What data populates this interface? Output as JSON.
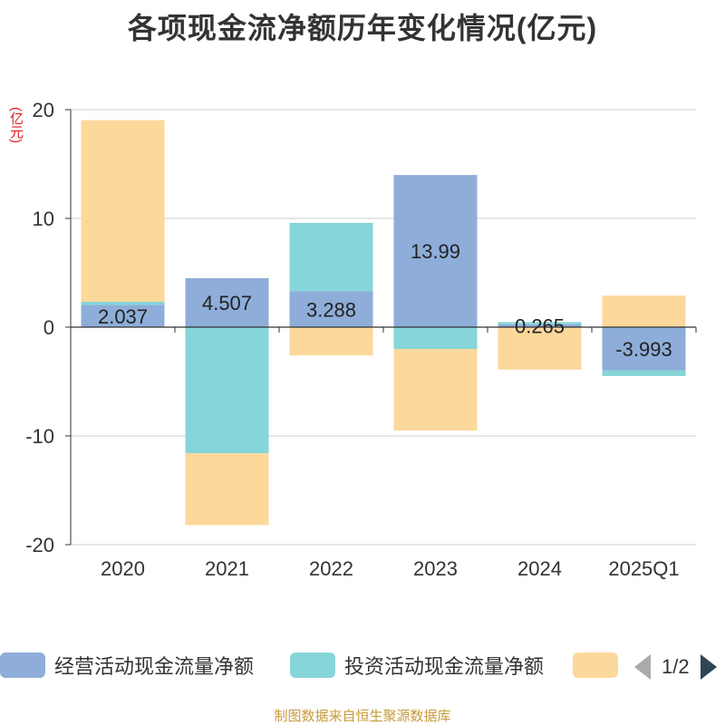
{
  "title": "各项现金流净额历年变化情况(亿元)",
  "unit_label": "(亿元)",
  "source": "制图数据来自恒生聚源数据库",
  "legend": {
    "page": "1/2"
  },
  "colors": {
    "operating": "#8eadd9",
    "investing": "#86d5d8",
    "financing": "#fdd89b"
  },
  "chart_data": {
    "type": "bar",
    "stacked": true,
    "title": "各项现金流净额历年变化情况(亿元)",
    "ylabel": "(亿元)",
    "ylim": [
      -20,
      20
    ],
    "yticks": [
      20,
      10,
      0,
      -10,
      -20
    ],
    "categories": [
      "2020",
      "2021",
      "2022",
      "2023",
      "2024",
      "2025Q1"
    ],
    "series": [
      {
        "name": "经营活动现金流量净额",
        "values": [
          2.037,
          4.507,
          3.288,
          13.99,
          0.265,
          -3.993
        ],
        "labels": [
          "2.037",
          "4.507",
          "3.288",
          "13.99",
          "0.265",
          "-3.993"
        ]
      },
      {
        "name": "投资活动现金流量净额",
        "values": [
          0.3,
          -11.6,
          6.3,
          -2.0,
          0.2,
          -0.5
        ]
      },
      {
        "name": "",
        "values": [
          16.7,
          -6.6,
          -2.6,
          -7.5,
          -3.9,
          2.9
        ]
      }
    ]
  }
}
